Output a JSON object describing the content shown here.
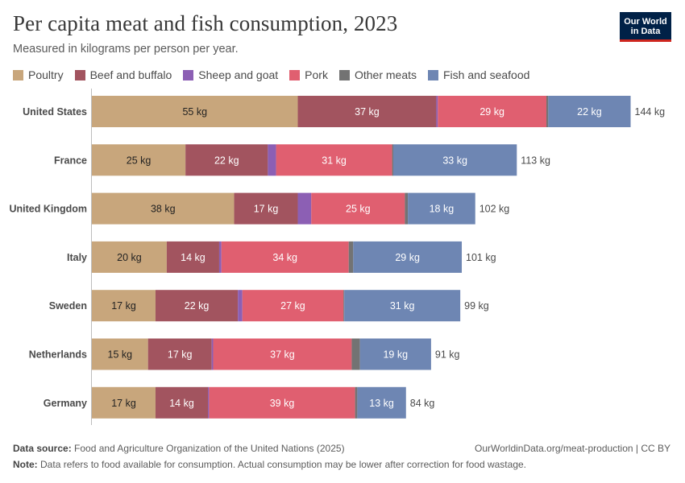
{
  "header": {
    "title": "Per capita meat and fish consumption, 2023",
    "subtitle": "Measured in kilograms per person per year.",
    "logo_line1": "Our World",
    "logo_line2": "in Data"
  },
  "footer": {
    "source_label": "Data source:",
    "source_text": "Food and Agriculture Organization of the United Nations (2025)",
    "url_text": "OurWorldinData.org/meat-production | CC BY",
    "note_label": "Note:",
    "note_text": "Data refers to food available for consumption. Actual consumption may be lower after correction for food wastage."
  },
  "chart_data": {
    "type": "bar",
    "orientation": "horizontal",
    "stacked": true,
    "unit": "kg",
    "categories": [
      "United States",
      "France",
      "United Kingdom",
      "Italy",
      "Sweden",
      "Netherlands",
      "Germany"
    ],
    "series": [
      {
        "name": "Poultry",
        "color": "#c8a67c",
        "label_color": "#222222",
        "values": [
          55,
          25,
          38,
          20,
          17,
          15,
          17
        ]
      },
      {
        "name": "Beef and buffalo",
        "color": "#a2545f",
        "label_color": "#ffffff",
        "values": [
          37,
          22,
          17,
          14,
          22,
          17,
          14
        ]
      },
      {
        "name": "Sheep and goat",
        "color": "#8c5fb4",
        "label_color": "#ffffff",
        "values": [
          0.4,
          2.2,
          3.6,
          0.6,
          1.2,
          0.4,
          0.3
        ]
      },
      {
        "name": "Pork",
        "color": "#e05f70",
        "label_color": "#ffffff",
        "values": [
          29,
          31,
          25,
          34,
          27,
          37,
          39
        ]
      },
      {
        "name": "Other meats",
        "color": "#737373",
        "label_color": "#ffffff",
        "values": [
          0.5,
          0.3,
          0.8,
          1.2,
          0.2,
          2.2,
          0.6
        ]
      },
      {
        "name": "Fish and seafood",
        "color": "#6e86b3",
        "label_color": "#ffffff",
        "values": [
          22,
          33,
          18,
          29,
          31,
          19,
          13
        ]
      }
    ],
    "totals": [
      144,
      113,
      102,
      101,
      99,
      91,
      84
    ],
    "xlim": [
      0,
      144
    ],
    "grid": false,
    "legend_position": "top"
  }
}
